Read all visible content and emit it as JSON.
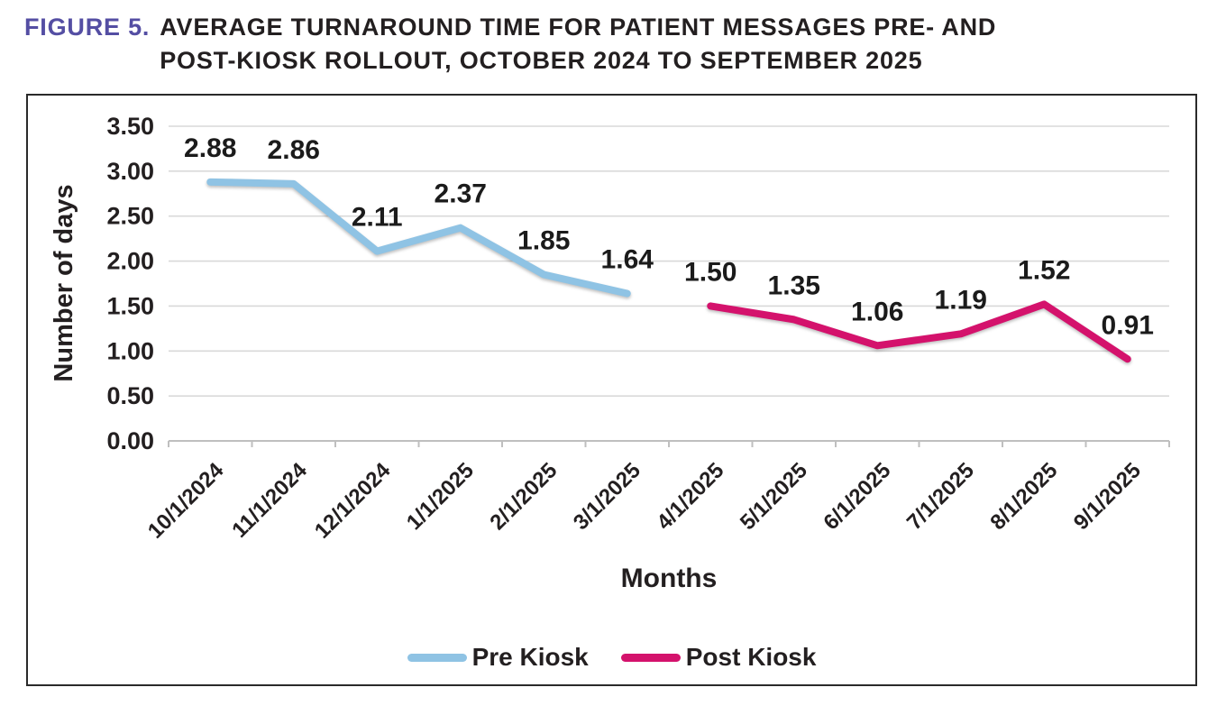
{
  "title": {
    "figure_label": "FIGURE 5.",
    "line1": "AVERAGE TURNAROUND TIME FOR PATIENT MESSAGES PRE- AND",
    "line2": "POST-KIOSK ROLLOUT, OCTOBER 2024 TO SEPTEMBER 2025"
  },
  "colors": {
    "figure_label_purple": "#544EA3",
    "text_dark": "#231F20",
    "gridline": "#D9D9D9",
    "axis_line": "#BFBFBF",
    "pre_kiosk_blue": "#8FC3E4",
    "post_kiosk_pink": "#D4126C",
    "chart_border": "#2A2A2A"
  },
  "chart_data": {
    "type": "line",
    "title": "Average turnaround time for patient messages pre- and post-kiosk rollout",
    "xlabel": "Months",
    "ylabel": "Number of days",
    "ylim": [
      0,
      3.5
    ],
    "ytick_step": 0.5,
    "ytick_labels": [
      "0.00",
      "0.50",
      "1.00",
      "1.50",
      "2.00",
      "2.50",
      "3.00",
      "3.50"
    ],
    "grid": true,
    "legend_position": "bottom",
    "categories": [
      "10/1/2024",
      "11/1/2024",
      "12/1/2024",
      "1/1/2025",
      "2/1/2025",
      "3/1/2025",
      "4/1/2025",
      "5/1/2025",
      "6/1/2025",
      "7/1/2025",
      "8/1/2025",
      "9/1/2025"
    ],
    "series": [
      {
        "name": "Pre Kiosk",
        "color": "#8FC3E4",
        "values": [
          2.88,
          2.86,
          2.11,
          2.37,
          1.85,
          1.64,
          null,
          null,
          null,
          null,
          null,
          null
        ],
        "labels": [
          "2.88",
          "2.86",
          "2.11",
          "2.37",
          "1.85",
          "1.64",
          "",
          "",
          "",
          "",
          "",
          ""
        ]
      },
      {
        "name": "Post Kiosk",
        "color": "#D4126C",
        "values": [
          null,
          null,
          null,
          null,
          null,
          null,
          1.5,
          1.35,
          1.06,
          1.19,
          1.52,
          0.91
        ],
        "labels": [
          "",
          "",
          "",
          "",
          "",
          "",
          "1.50",
          "1.35",
          "1.06",
          "1.19",
          "1.52",
          "0.91"
        ]
      }
    ]
  },
  "legend": {
    "items": [
      {
        "label": "Pre Kiosk",
        "color": "#8FC3E4"
      },
      {
        "label": "Post Kiosk",
        "color": "#D4126C"
      }
    ]
  }
}
